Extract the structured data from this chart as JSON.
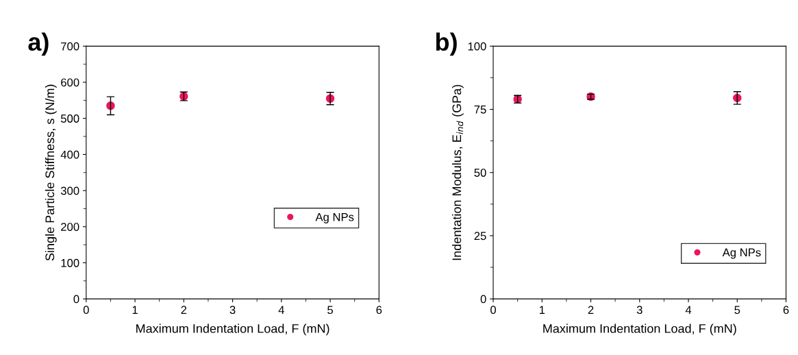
{
  "chart_data": [
    {
      "type": "scatter",
      "title": "a)",
      "xlabel": "Maximum Indentation Load, F (mN)",
      "ylabel": "Single Particle Stiffness, s (N/m)",
      "x": [
        0.5,
        2,
        5
      ],
      "series": [
        {
          "name": "Ag NPs",
          "color": "#e8175d",
          "values": [
            535,
            561,
            555
          ],
          "errors": [
            25,
            12,
            17
          ]
        }
      ],
      "xlim": [
        0,
        6
      ],
      "xticks": [
        0,
        1,
        2,
        3,
        4,
        5,
        6
      ],
      "ylim": [
        0,
        700
      ],
      "yticks": [
        0,
        100,
        200,
        300,
        400,
        500,
        600,
        700
      ],
      "marker": "circle",
      "legend": "center right",
      "grid": false
    },
    {
      "type": "scatter",
      "title": "b)",
      "xlabel": "Maximum Indentation Load, F (mN)",
      "ylabel": "Indentation Modulus, E$_{ind}$ (GPa)",
      "x": [
        0.5,
        2,
        5
      ],
      "series": [
        {
          "name": "Ag NPs",
          "color": "#e8175d",
          "values": [
            79,
            80,
            79.5
          ],
          "errors": [
            1.5,
            1,
            2.5
          ]
        }
      ],
      "xlim": [
        0,
        6
      ],
      "xticks": [
        0,
        1,
        2,
        3,
        4,
        5,
        6
      ],
      "ylim": [
        0,
        100
      ],
      "yticks": [
        0,
        25,
        50,
        75,
        100
      ],
      "marker": "circle",
      "legend": "lower right",
      "grid": false
    }
  ]
}
